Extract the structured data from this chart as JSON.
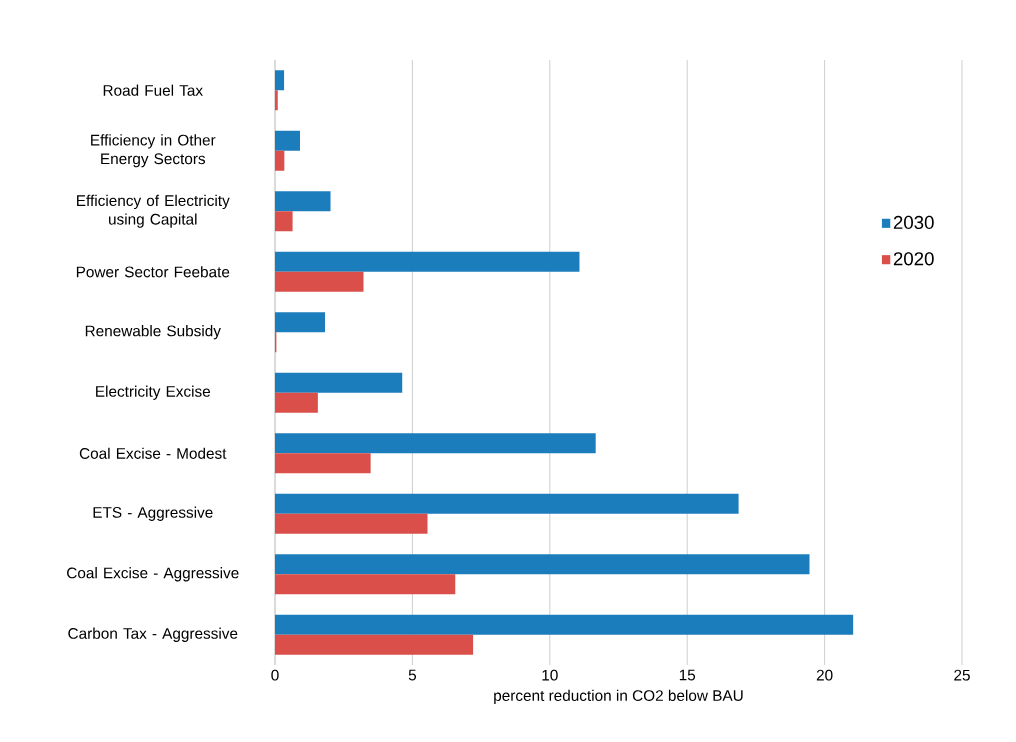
{
  "chart_data": {
    "type": "bar",
    "orientation": "horizontal",
    "xlabel": "percent reduction in CO2 below BAU",
    "categories": [
      "Road Fuel Tax",
      "Efficiency in Other Energy Sectors",
      "Efficiency of Electricity using Capital",
      "Power Sector Feebate",
      "Renewable Subsidy",
      "Electricity Excise",
      "Coal Excise - Modest",
      "ETS - Aggressive",
      "Coal Excise - Aggressive",
      "Carbon Tax - Aggressive"
    ],
    "series": [
      {
        "name": "2030",
        "color": "#1c7dbd",
        "values": [
          0.33,
          0.91,
          2.02,
          11.08,
          1.82,
          4.63,
          11.67,
          16.87,
          19.45,
          21.04
        ]
      },
      {
        "name": "2020",
        "color": "#da4f49",
        "values": [
          0.1,
          0.34,
          0.64,
          3.22,
          0.05,
          1.56,
          3.48,
          5.55,
          6.56,
          7.21
        ]
      }
    ],
    "xlim": [
      0,
      25
    ],
    "xticks": [
      0,
      5,
      10,
      15,
      20,
      25
    ],
    "grid": "x",
    "legend": "right"
  }
}
